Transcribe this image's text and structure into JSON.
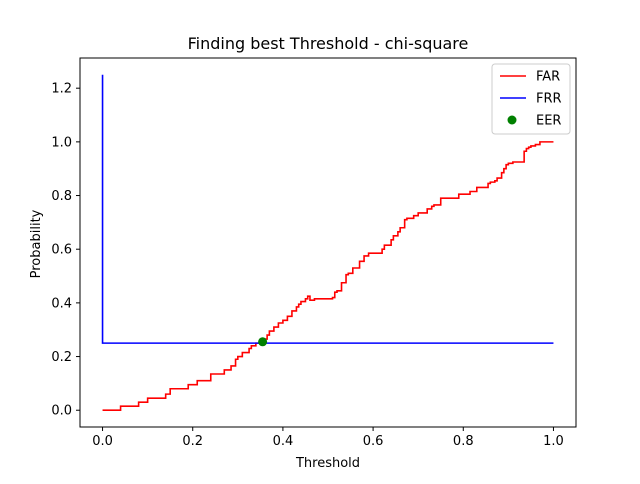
{
  "chart_data": {
    "type": "line",
    "title": "Finding best Threshold - chi-square",
    "xlabel": "Threshold",
    "ylabel": "Probability",
    "xlim": [
      -0.05,
      1.05
    ],
    "ylim": [
      -0.0625,
      1.3125
    ],
    "x_ticks": [
      "0.0",
      "0.2",
      "0.4",
      "0.6",
      "0.8",
      "1.0"
    ],
    "y_ticks": [
      "0.0",
      "0.2",
      "0.4",
      "0.6",
      "0.8",
      "1.0",
      "1.2"
    ],
    "grid": false,
    "legend_position": "top-right",
    "series": [
      {
        "name": "FAR",
        "color": "#ff0000",
        "kind": "step",
        "x": [
          0.0,
          0.04,
          0.08,
          0.1,
          0.14,
          0.15,
          0.19,
          0.21,
          0.24,
          0.27,
          0.285,
          0.295,
          0.3,
          0.31,
          0.325,
          0.33,
          0.34,
          0.35,
          0.355,
          0.365,
          0.37,
          0.38,
          0.39,
          0.4,
          0.41,
          0.42,
          0.43,
          0.435,
          0.44,
          0.45,
          0.455,
          0.46,
          0.47,
          0.5,
          0.51,
          0.515,
          0.52,
          0.53,
          0.54,
          0.545,
          0.555,
          0.57,
          0.58,
          0.59,
          0.62,
          0.625,
          0.64,
          0.645,
          0.655,
          0.66,
          0.67,
          0.675,
          0.69,
          0.7,
          0.72,
          0.73,
          0.735,
          0.75,
          0.79,
          0.815,
          0.83,
          0.855,
          0.86,
          0.87,
          0.875,
          0.885,
          0.89,
          0.895,
          0.9,
          0.905,
          0.91,
          0.935,
          0.94,
          0.945,
          0.95,
          0.96,
          0.97,
          0.975,
          0.985,
          1.0
        ],
        "y": [
          0.0,
          0.015,
          0.03,
          0.045,
          0.06,
          0.08,
          0.095,
          0.11,
          0.135,
          0.15,
          0.165,
          0.19,
          0.2,
          0.215,
          0.23,
          0.24,
          0.25,
          0.255,
          0.265,
          0.28,
          0.295,
          0.31,
          0.325,
          0.335,
          0.35,
          0.37,
          0.385,
          0.395,
          0.405,
          0.415,
          0.425,
          0.41,
          0.415,
          0.415,
          0.42,
          0.44,
          0.445,
          0.475,
          0.505,
          0.51,
          0.53,
          0.555,
          0.575,
          0.585,
          0.6,
          0.615,
          0.635,
          0.65,
          0.665,
          0.68,
          0.71,
          0.715,
          0.725,
          0.735,
          0.75,
          0.76,
          0.765,
          0.79,
          0.805,
          0.815,
          0.83,
          0.845,
          0.85,
          0.855,
          0.865,
          0.885,
          0.9,
          0.915,
          0.92,
          0.92,
          0.925,
          0.965,
          0.975,
          0.98,
          0.985,
          0.99,
          1.0,
          1.0,
          1.0,
          1.0
        ]
      },
      {
        "name": "FRR",
        "color": "#0000ff",
        "kind": "line",
        "x": [
          0.0,
          0.0,
          0.0,
          1.0
        ],
        "y": [
          1.25,
          0.25,
          0.25,
          0.25
        ]
      },
      {
        "name": "EER",
        "color": "#008000",
        "kind": "scatter",
        "x": [
          0.355
        ],
        "y": [
          0.255
        ]
      }
    ]
  }
}
